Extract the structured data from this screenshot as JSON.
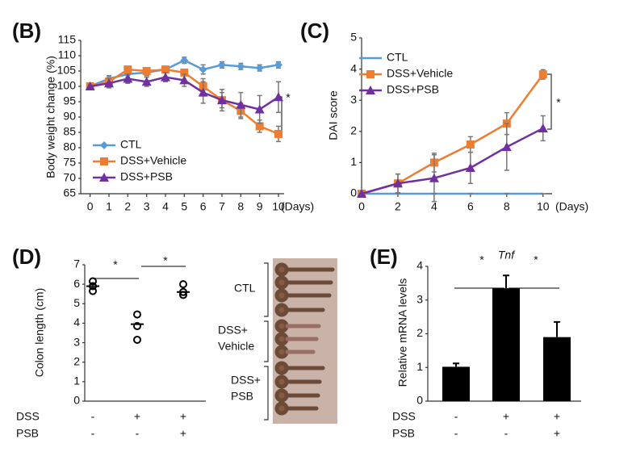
{
  "chart_data": [
    {
      "type": "line",
      "panel_label": "(B)",
      "y_label": "Body weight change (%)",
      "x_label": "(Days)",
      "x": [
        0,
        1,
        2,
        3,
        4,
        5,
        6,
        7,
        8,
        9,
        10
      ],
      "xlim": [
        -0.5,
        10.3
      ],
      "xticks": [
        0,
        1,
        2,
        3,
        4,
        5,
        6,
        7,
        8,
        9,
        10
      ],
      "ylim": [
        65,
        115
      ],
      "yticks": [
        65,
        70,
        75,
        80,
        85,
        90,
        95,
        100,
        105,
        110,
        115
      ],
      "legend": "lower left",
      "significance": [
        "*"
      ],
      "series": [
        {
          "name": "CTL",
          "color": "#5b9bd5",
          "marker": "diamond",
          "values": [
            100,
            102.5,
            104,
            104.5,
            105.5,
            108.5,
            105.5,
            107,
            106.5,
            106,
            107
          ],
          "errors": [
            0.5,
            1,
            1,
            1,
            1,
            1,
            1.5,
            1,
            1,
            1,
            1
          ]
        },
        {
          "name": "DSS+Vehicle",
          "color": "#ed7d31",
          "marker": "square",
          "values": [
            100,
            101.5,
            105.5,
            105,
            105.5,
            104.5,
            100,
            95.5,
            92,
            87,
            84.5
          ],
          "errors": [
            0.5,
            1,
            1,
            1,
            1,
            1,
            2.5,
            2.5,
            2.5,
            2,
            2.5
          ]
        },
        {
          "name": "DSS+PSB",
          "color": "#7030a0",
          "marker": "triangle",
          "values": [
            100,
            101,
            102.5,
            101.5,
            103,
            102,
            98,
            95.5,
            94,
            92.5,
            96.5
          ],
          "errors": [
            0.5,
            1.5,
            1.5,
            1.5,
            1.5,
            2,
            3.5,
            3.5,
            4,
            4.5,
            5
          ]
        }
      ]
    },
    {
      "type": "line",
      "panel_label": "(C)",
      "y_label": "DAI score",
      "x_label": "(Days)",
      "x": [
        0,
        2,
        4,
        6,
        8,
        10
      ],
      "xlim": [
        0,
        10.5
      ],
      "xticks": [
        0,
        2,
        4,
        6,
        8,
        10
      ],
      "ylim": [
        0,
        5
      ],
      "yticks": [
        0,
        1,
        2,
        3,
        4,
        5
      ],
      "legend": "upper left",
      "significance": [
        "*"
      ],
      "series": [
        {
          "name": "CTL",
          "color": "#5b9bd5",
          "marker": "none",
          "values": [
            0,
            0,
            0,
            0,
            0,
            0
          ],
          "errors": [
            0,
            0,
            0,
            0,
            0,
            0
          ]
        },
        {
          "name": "DSS+Vehicle",
          "color": "#ed7d31",
          "marker": "square",
          "values": [
            0,
            0.33,
            1.0,
            1.58,
            2.25,
            3.83
          ],
          "errors": [
            0,
            0.3,
            0.3,
            0.25,
            0.35,
            0.15
          ]
        },
        {
          "name": "DSS+PSB",
          "color": "#7030a0",
          "marker": "triangle",
          "values": [
            0,
            0.33,
            0.5,
            0.83,
            1.5,
            2.1
          ],
          "errors": [
            0,
            0.3,
            0.75,
            0.5,
            0.75,
            0.4
          ]
        }
      ]
    },
    {
      "type": "dot",
      "panel_label": "(D)",
      "y_label": "Colon length (cm)",
      "ylim": [
        0,
        7
      ],
      "yticks": [
        0,
        1,
        2,
        3,
        4,
        5,
        6,
        7
      ],
      "color": "#000000",
      "points": [
        [
          6.15,
          5.9,
          5.65
        ],
        [
          4.45,
          3.85,
          3.15
        ],
        [
          6.0,
          5.6,
          5.45
        ]
      ],
      "means": [
        5.9,
        3.95,
        5.6
      ],
      "conditions": [
        {
          "name": "DSS",
          "values": [
            "-",
            "+",
            "+"
          ]
        },
        {
          "name": "PSB",
          "values": [
            "-",
            "-",
            "+"
          ]
        }
      ],
      "significance": [
        "*",
        "*"
      ]
    },
    {
      "type": "bar",
      "panel_label": "(E)",
      "title": "Tnf",
      "y_label": "Relative mRNA levels",
      "ylim": [
        0,
        4
      ],
      "yticks": [
        0,
        1,
        2,
        3,
        4
      ],
      "color": "#000000",
      "values": [
        1.02,
        3.35,
        1.9
      ],
      "errors": [
        0.1,
        0.38,
        0.45
      ],
      "conditions": [
        {
          "name": "DSS",
          "values": [
            "-",
            "+",
            "+"
          ]
        },
        {
          "name": "PSB",
          "values": [
            "-",
            "-",
            "+"
          ]
        }
      ],
      "significance": [
        "*",
        "*"
      ]
    }
  ],
  "photo_labels": [
    [
      "CTL"
    ],
    [
      "DSS+",
      "Vehicle"
    ],
    [
      "DSS+",
      "PSB"
    ]
  ]
}
